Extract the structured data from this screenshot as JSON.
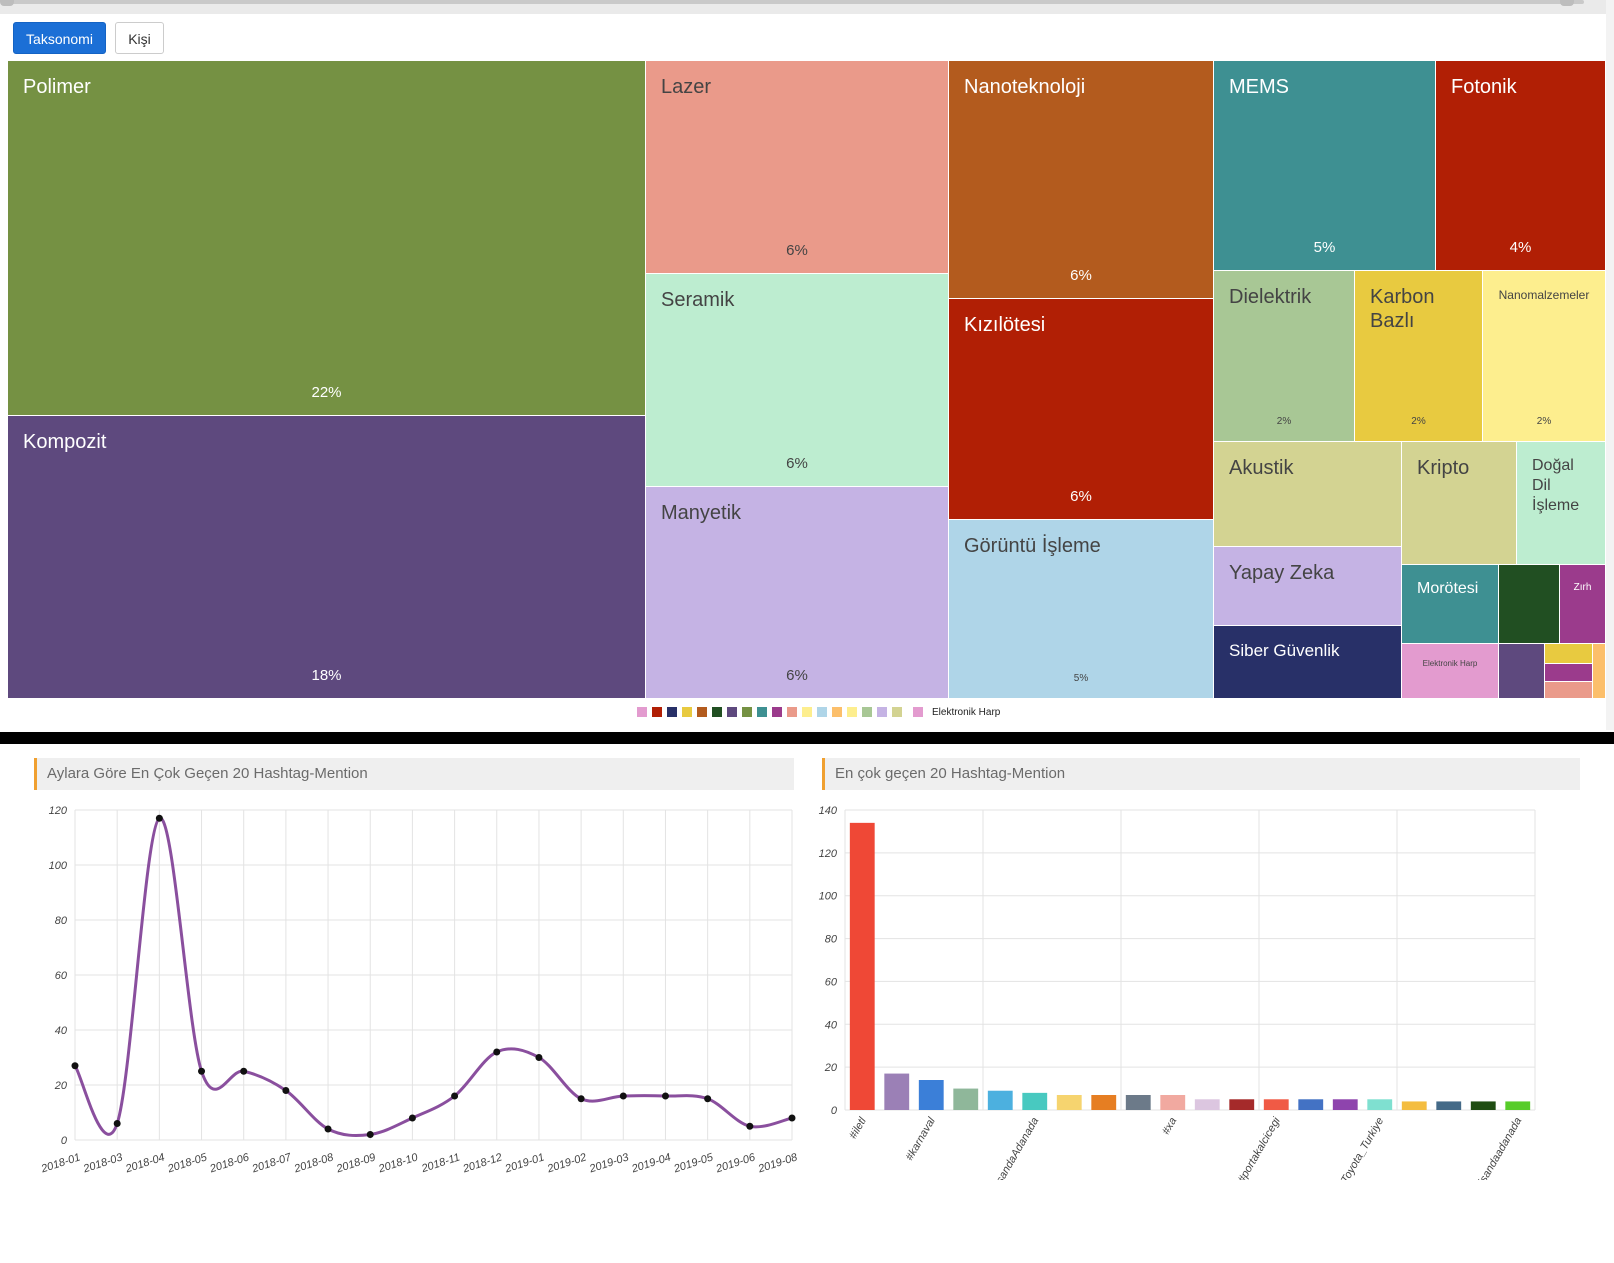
{
  "tabs": [
    {
      "label": "Taksonomi",
      "active": true
    },
    {
      "label": "Kişi",
      "active": false
    }
  ],
  "treemap": {
    "cells": [
      {
        "name": "Polimer",
        "pct": "22%",
        "color": "#759143",
        "text": "#ffffff"
      },
      {
        "name": "Kompozit",
        "pct": "18%",
        "color": "#5e497e",
        "text": "#ffffff"
      },
      {
        "name": "Lazer",
        "pct": "6%",
        "color": "#ea9a8a",
        "text": "#444444"
      },
      {
        "name": "Seramik",
        "pct": "6%",
        "color": "#bdedd0",
        "text": "#444444"
      },
      {
        "name": "Manyetik",
        "pct": "6%",
        "color": "#c5b3e4",
        "text": "#444444"
      },
      {
        "name": "Nanoteknoloji",
        "pct": "6%",
        "color": "#b35b1e",
        "text": "#ffffff"
      },
      {
        "name": "Kızılötesi",
        "pct": "6%",
        "color": "#b11f05",
        "text": "#ffffff"
      },
      {
        "name": "Görüntü İşleme",
        "pct": "5%",
        "color": "#afd5e8",
        "text": "#444444"
      },
      {
        "name": "MEMS",
        "pct": "5%",
        "color": "#3e9092",
        "text": "#ffffff"
      },
      {
        "name": "Fotonik",
        "pct": "4%",
        "color": "#b11f05",
        "text": "#ffffff"
      },
      {
        "name": "Dielektrik",
        "pct": "2%",
        "color": "#a8c795",
        "text": "#444444"
      },
      {
        "name": "Karbon Bazlı",
        "pct": "2%",
        "color": "#e8ca40",
        "text": "#444444"
      },
      {
        "name": "Nanomalzemeler",
        "pct": "2%",
        "color": "#fdee8e",
        "text": "#444444"
      },
      {
        "name": "Akustik",
        "pct": "",
        "color": "#d3d392",
        "text": "#444444"
      },
      {
        "name": "Kripto",
        "pct": "",
        "color": "#d3d392",
        "text": "#444444"
      },
      {
        "name": "Doğal Dil İşleme",
        "pct": "",
        "color": "#bdedd0",
        "text": "#444444"
      },
      {
        "name": "Yapay Zeka",
        "pct": "",
        "color": "#c5b3e4",
        "text": "#444444"
      },
      {
        "name": "Siber Güvenlik",
        "pct": "",
        "color": "#283068",
        "text": "#ffffff"
      },
      {
        "name": "Morötesi",
        "pct": "",
        "color": "#3e9092",
        "text": "#ffffff"
      },
      {
        "name": "",
        "pct": "",
        "color": "#214f22",
        "text": "#ffffff"
      },
      {
        "name": "Zırh",
        "pct": "",
        "color": "#9b3b8c",
        "text": "#ffffff"
      },
      {
        "name": "Elektronik Harp",
        "pct": "",
        "color": "#e39bcf",
        "text": "#444444"
      },
      {
        "name": "",
        "pct": "",
        "color": "#5e497e",
        "text": "#ffffff"
      },
      {
        "name": "",
        "pct": "",
        "color": "#e8ca40",
        "text": "#444444"
      },
      {
        "name": "",
        "pct": "",
        "color": "#9b3b8c",
        "text": "#ffffff"
      },
      {
        "name": "",
        "pct": "",
        "color": "#ea9a8a",
        "text": "#444444"
      },
      {
        "name": "",
        "pct": "",
        "color": "#fcbf6b",
        "text": "#444444"
      }
    ]
  },
  "legend": {
    "swatches": [
      "#e39bcf",
      "#b11f05",
      "#283068",
      "#e8ca40",
      "#b35b1e",
      "#214f22",
      "#5e497e",
      "#759143",
      "#3e9092",
      "#9b3b8c",
      "#ea9a8a",
      "#fdee8e",
      "#afd5e8",
      "#fcbf6b",
      "#fdee8e",
      "#a8c795",
      "#c5b3e4",
      "#d3d392"
    ],
    "active_swatch": "#e39bcf",
    "active_label": "Elektronik Harp"
  },
  "panels": {
    "line_title": "Aylara Göre En Çok Geçen 20 Hashtag-Mention",
    "bar_title": "En çok geçen 20 Hashtag-Mention"
  },
  "chart_data": [
    {
      "type": "line",
      "title": "Aylara Göre En Çok Geçen 20 Hashtag-Mention",
      "x": [
        "2018-01",
        "2018-03",
        "2018-04",
        "2018-05",
        "2018-06",
        "2018-07",
        "2018-08",
        "2018-09",
        "2018-10",
        "2018-11",
        "2018-12",
        "2019-01",
        "2019-02",
        "2019-03",
        "2019-04",
        "2019-05",
        "2019-06",
        "2019-08"
      ],
      "values": [
        27,
        6,
        117,
        25,
        25,
        18,
        4,
        2,
        8,
        16,
        32,
        30,
        15,
        16,
        16,
        15,
        5,
        8
      ],
      "ylim": [
        0,
        120
      ],
      "yticks": [
        0,
        20,
        40,
        60,
        80,
        100,
        120
      ],
      "color": "#8a4f9e",
      "grid": true
    },
    {
      "type": "bar",
      "title": "En çok geçen 20 Hashtag-Mention",
      "categories": [
        "#iletl",
        "",
        "#karnaval",
        "",
        "",
        "@NisandaAdanada",
        "",
        "",
        "",
        "#xa",
        "",
        "",
        "#portakalcicegi",
        "",
        "",
        "@Toyota_Turkiye",
        "",
        "",
        "",
        "@nisandaadanada"
      ],
      "values": [
        134,
        17,
        14,
        10,
        9,
        8,
        7,
        7,
        7,
        7,
        5,
        5,
        5,
        5,
        5,
        5,
        4,
        4,
        4,
        4
      ],
      "colors": [
        "#ef4836",
        "#9b80b6",
        "#3b7fd8",
        "#8fb79a",
        "#4cb0df",
        "#48c9c0",
        "#f6d46f",
        "#e67e22",
        "#6c7a89",
        "#f1a9a0",
        "#dcc6e0",
        "#a52a2a",
        "#f05a45",
        "#4372c4",
        "#8e44ad",
        "#7fe0d0",
        "#f4bd40",
        "#446a88",
        "#1f4d12",
        "#57cc2a"
      ],
      "ylim": [
        0,
        140
      ],
      "yticks": [
        0,
        20,
        40,
        60,
        80,
        100,
        120,
        140
      ],
      "grid": true
    }
  ]
}
